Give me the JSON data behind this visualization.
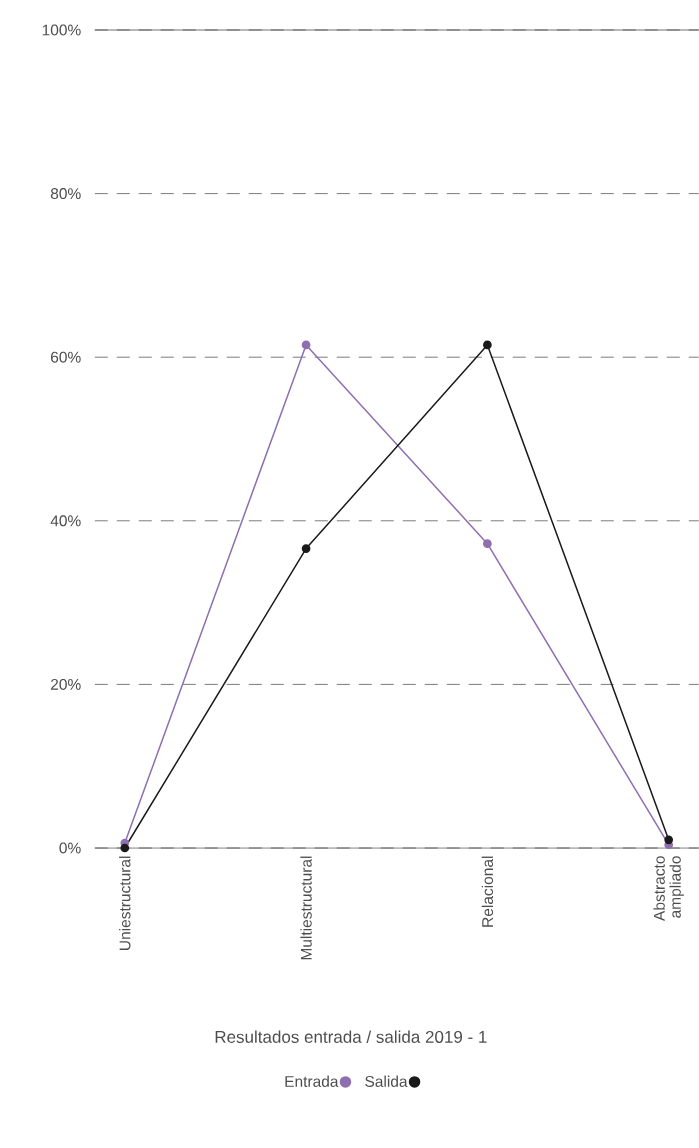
{
  "chart_data": {
    "type": "line",
    "title": "Resultados entrada / salida 2019 - 1",
    "categories": [
      "Uniestructural",
      "Multiestructural",
      "Relacional",
      "Abstracto ampliado"
    ],
    "series": [
      {
        "name": "Entrada",
        "color": "#8e6fb0",
        "values": [
          0.6,
          61.5,
          37.2,
          0.4
        ]
      },
      {
        "name": "Salida",
        "color": "#1a1a1a",
        "values": [
          0,
          36.6,
          61.5,
          1.0
        ]
      }
    ],
    "ylim": [
      0,
      100
    ],
    "yticks": [
      {
        "value": 0,
        "label": "0%"
      },
      {
        "value": 20,
        "label": "20%"
      },
      {
        "value": 40,
        "label": "40%"
      },
      {
        "value": 60,
        "label": "60%"
      },
      {
        "value": 80,
        "label": "80%"
      },
      {
        "value": 100,
        "label": "100%"
      }
    ],
    "grid": "y",
    "legend": "bottom",
    "marker": "circle",
    "line_style": "solid"
  }
}
